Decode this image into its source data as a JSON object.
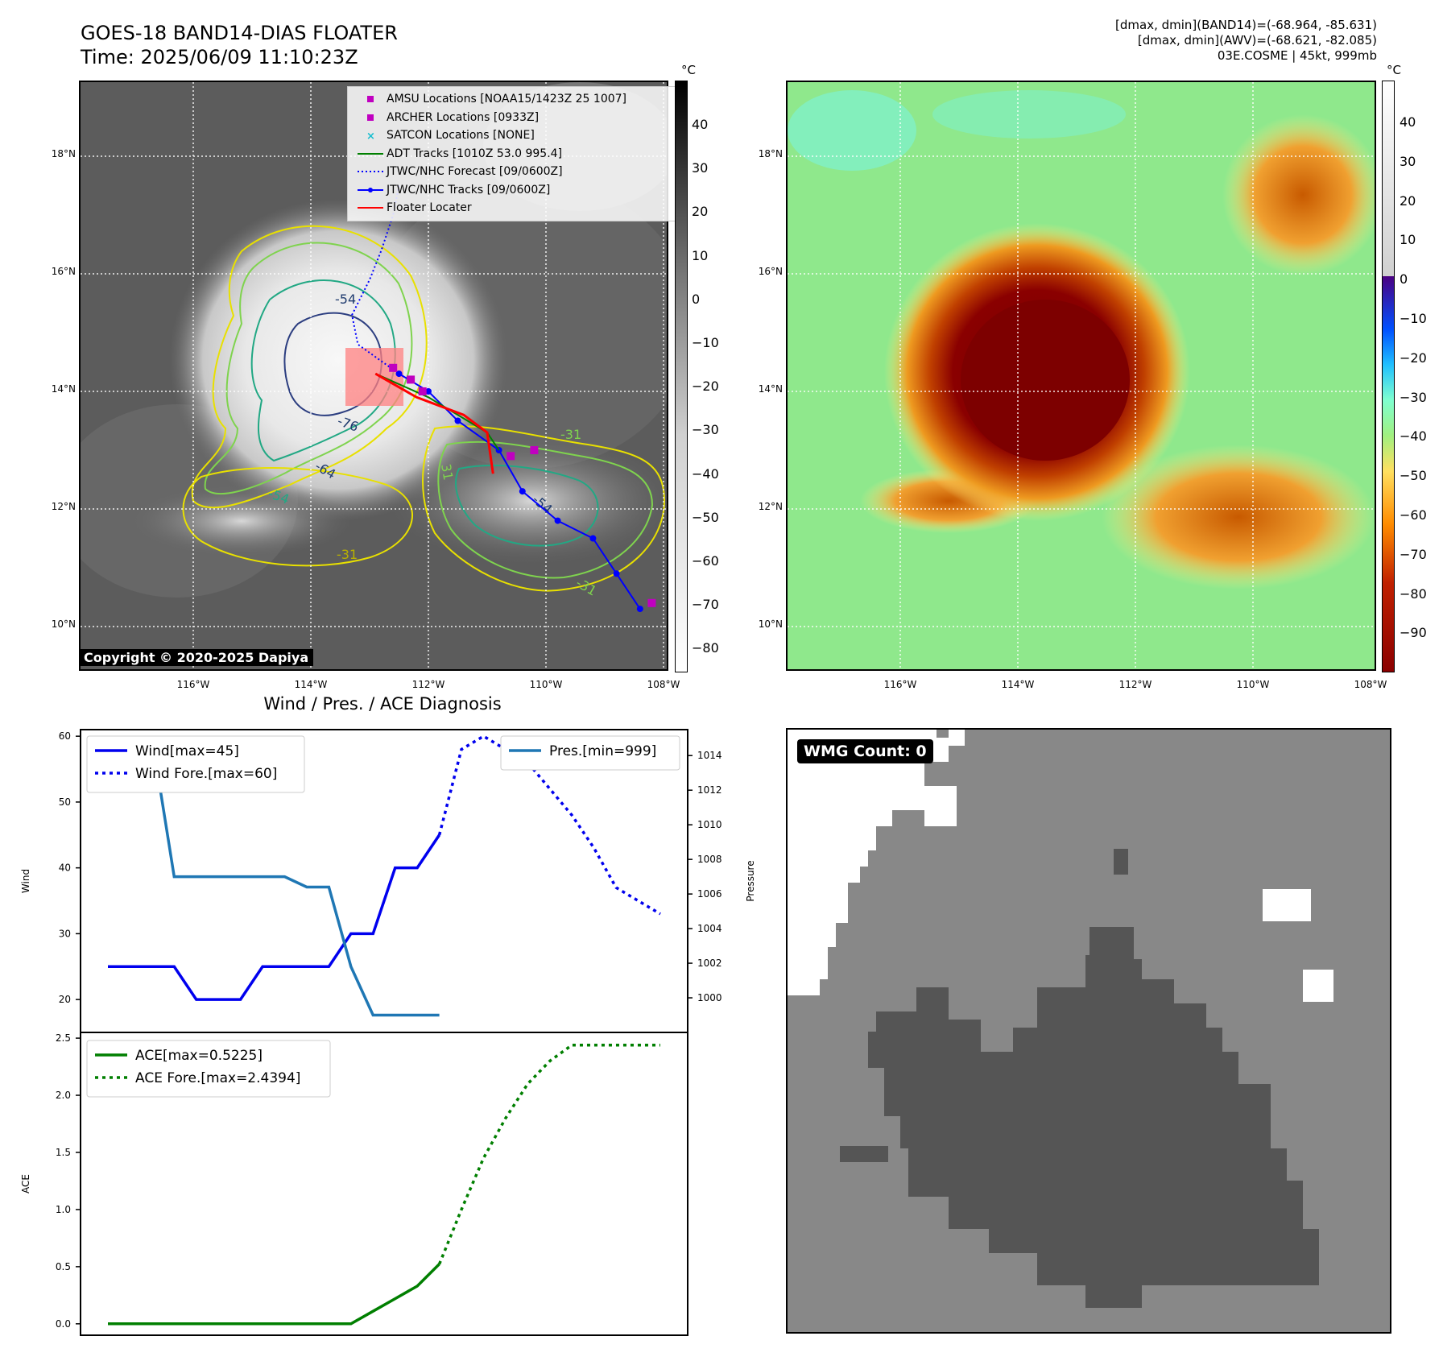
{
  "header": {
    "title_line1": "GOES-18 BAND14-DIAS FLOATER",
    "title_line2": "Time: 2025/06/09 11:10:23Z",
    "info_line1": "[dmax, dmin](BAND14)=(-68.964, -85.631)",
    "info_line2": "[dmax, dmin](AWV)=(-68.621, -82.085)",
    "info_line3": "03E.COSME | 45kt, 999mb"
  },
  "map": {
    "lon_ticks": [
      "116°W",
      "114°W",
      "112°W",
      "110°W",
      "108°W"
    ],
    "lat_ticks": [
      "18°N",
      "16°N",
      "14°N",
      "12°N",
      "10°N"
    ],
    "contour_labels": [
      "-54",
      "-76",
      "-64",
      "-54",
      "-31",
      "-31",
      "31",
      "-54",
      "-31"
    ],
    "copyright": "Copyright © 2020-2025 Dapiya",
    "legend": [
      {
        "label": "AMSU Locations [NOAA15/1423Z 25 1007]",
        "key": "magenta-square",
        "color": "#c000c0"
      },
      {
        "label": "ARCHER Locations [0933Z]",
        "key": "magenta-square",
        "color": "#c000c0"
      },
      {
        "label": "SATCON Locations [NONE]",
        "key": "cyan-x",
        "color": "#17becf"
      },
      {
        "label": "ADT Tracks [1010Z 53.0 995.4]",
        "key": "line",
        "color": "#008000"
      },
      {
        "label": "JTWC/NHC Forecast [09/0600Z]",
        "key": "dotted-line",
        "color": "#0000ff"
      },
      {
        "label": "JTWC/NHC Tracks [09/0600Z]",
        "key": "line-dot",
        "color": "#0000ff"
      },
      {
        "label": "Floater Locater",
        "key": "line",
        "color": "#ff0000"
      }
    ],
    "colorbar_gray": {
      "unit": "°C",
      "ticks": [
        "40",
        "30",
        "20",
        "10",
        "0",
        "−10",
        "−20",
        "−30",
        "−40",
        "−50",
        "−60",
        "−70",
        "−80"
      ]
    },
    "colorbar_color": {
      "unit": "°C",
      "ticks": [
        "40",
        "30",
        "20",
        "10",
        "0",
        "−10",
        "−20",
        "−30",
        "−40",
        "−50",
        "−60",
        "−70",
        "−80",
        "−90"
      ]
    },
    "track_points": [
      [
        -108.4,
        10.3
      ],
      [
        -108.8,
        10.9
      ],
      [
        -109.2,
        11.5
      ],
      [
        -109.8,
        11.8
      ],
      [
        -110.4,
        12.3
      ],
      [
        -110.8,
        13.0
      ],
      [
        -111.5,
        13.5
      ],
      [
        -112.0,
        14.0
      ],
      [
        -112.5,
        14.3
      ]
    ],
    "forecast_points": [
      [
        -112.5,
        14.3
      ],
      [
        -113.2,
        14.8
      ],
      [
        -113.3,
        15.3
      ],
      [
        -113.0,
        15.9
      ],
      [
        -112.8,
        16.4
      ],
      [
        -112.6,
        17.0
      ],
      [
        -112.5,
        17.5
      ]
    ],
    "amsu_points": [
      [
        -112.6,
        14.4
      ],
      [
        -112.3,
        14.2
      ],
      [
        -112.1,
        14.0
      ],
      [
        -110.6,
        12.9
      ],
      [
        -110.2,
        13.0
      ],
      [
        -108.2,
        10.4
      ]
    ]
  },
  "wmg": {
    "label": "WMG Count: 0"
  },
  "chart_data": [
    {
      "type": "line",
      "title": "Wind / Pres. / ACE Diagnosis",
      "ylabel": "Wind",
      "ylabel_right": "Pressure",
      "x": [
        0,
        1,
        2,
        3,
        4,
        5,
        6,
        7,
        8,
        9,
        10,
        11,
        12,
        13,
        14,
        15,
        16,
        17,
        18,
        19,
        20,
        21,
        22,
        23,
        24,
        25
      ],
      "ylim": [
        15,
        61
      ],
      "ylim_right": [
        998.0,
        1015.5
      ],
      "yticks": [
        20,
        30,
        40,
        50,
        60
      ],
      "yticks_right": [
        1000,
        1002,
        1004,
        1006,
        1008,
        1010,
        1012,
        1014
      ],
      "series": [
        {
          "name": "Wind[max=45]",
          "axis": "left",
          "style": "solid",
          "color": "#0000ee",
          "x": [
            0,
            1,
            2,
            3,
            4,
            5,
            6,
            7,
            8,
            9,
            10,
            11,
            12,
            13,
            14,
            15
          ],
          "values": [
            25,
            25,
            25,
            25,
            20,
            20,
            20,
            25,
            25,
            25,
            25,
            30,
            30,
            40,
            40,
            45
          ]
        },
        {
          "name": "Wind Fore.[max=60]",
          "axis": "left",
          "style": "dotted",
          "color": "#0000ee",
          "x": [
            15,
            16,
            17,
            18,
            19,
            20,
            21,
            22,
            23,
            24,
            25
          ],
          "values": [
            45,
            58,
            60,
            58,
            56,
            52,
            48,
            43,
            37,
            35,
            33
          ]
        },
        {
          "name": "Pres.[min=999]",
          "axis": "right",
          "style": "solid",
          "color": "#1f77b4",
          "x": [
            0,
            1,
            2,
            3,
            4,
            5,
            6,
            7,
            8,
            9,
            10,
            11,
            12,
            13,
            14,
            15
          ],
          "values": [
            1015,
            1015,
            1015,
            1007,
            1007,
            1007,
            1007,
            1007,
            1007,
            1006.4,
            1006.4,
            1001.8,
            999,
            999,
            999,
            999
          ]
        }
      ]
    },
    {
      "type": "line",
      "ylabel": "ACE",
      "x": [
        0,
        1,
        2,
        3,
        4,
        5,
        6,
        7,
        8,
        9,
        10,
        11,
        12,
        13,
        14,
        15,
        16,
        17,
        18,
        19,
        20,
        21,
        22,
        23,
        24,
        25
      ],
      "ylim": [
        -0.1,
        2.55
      ],
      "yticks": [
        "0.0",
        "0.5",
        "1.0",
        "1.5",
        "2.0",
        "2.5"
      ],
      "series": [
        {
          "name": "ACE[max=0.5225]",
          "style": "solid",
          "color": "#007f00",
          "x": [
            0,
            1,
            2,
            3,
            4,
            5,
            6,
            7,
            8,
            9,
            10,
            11,
            12,
            13,
            14,
            15
          ],
          "values": [
            0,
            0,
            0,
            0,
            0,
            0,
            0,
            0,
            0,
            0,
            0,
            0,
            0.11,
            0.22,
            0.33,
            0.5225
          ]
        },
        {
          "name": "ACE Fore.[max=2.4394]",
          "style": "dotted",
          "color": "#007f00",
          "x": [
            15,
            16,
            17,
            18,
            19,
            20,
            21,
            22,
            23,
            24,
            25
          ],
          "values": [
            0.5225,
            1.0,
            1.45,
            1.8,
            2.1,
            2.3,
            2.4394,
            2.4394,
            2.4394,
            2.4394,
            2.4394
          ]
        }
      ]
    }
  ]
}
